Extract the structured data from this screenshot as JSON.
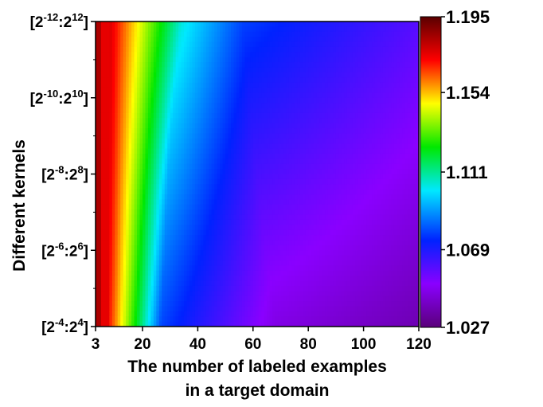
{
  "chart_data": {
    "type": "heatmap",
    "title": "",
    "xlabel_line1": "The number of labeled examples",
    "xlabel_line2": "in a target domain",
    "ylabel": "Different kernels",
    "x_ticks": [
      "3",
      "20",
      "40",
      "60",
      "80",
      "100",
      "120"
    ],
    "x_values": [
      3,
      20,
      40,
      60,
      80,
      100,
      120
    ],
    "xlim": [
      3,
      120
    ],
    "y_ticks": [
      {
        "base": "[2",
        "exp1": "-12",
        "mid": ":2",
        "exp2": "12",
        "end": "]"
      },
      {
        "base": "[2",
        "exp1": "-10",
        "mid": ":2",
        "exp2": "10",
        "end": "]"
      },
      {
        "base": "[2",
        "exp1": "-8",
        "mid": ":2",
        "exp2": "8",
        "end": "]"
      },
      {
        "base": "[2",
        "exp1": "-6",
        "mid": ":2",
        "exp2": "6",
        "end": "]"
      },
      {
        "base": "[2",
        "exp1": "-4",
        "mid": ":2",
        "exp2": "4",
        "end": "]"
      }
    ],
    "colorbar": {
      "min": 1.027,
      "max": 1.195,
      "tick_labels": [
        "1.195",
        "1.154",
        "1.111",
        "1.069",
        "1.027"
      ],
      "tick_values": [
        1.195,
        1.154,
        1.111,
        1.069,
        1.027
      ],
      "colormap": [
        "#5a007a",
        "#8a00ff",
        "#0022ff",
        "#00e8ff",
        "#00e800",
        "#ffff00",
        "#ff0000",
        "#5a0000"
      ]
    }
  }
}
